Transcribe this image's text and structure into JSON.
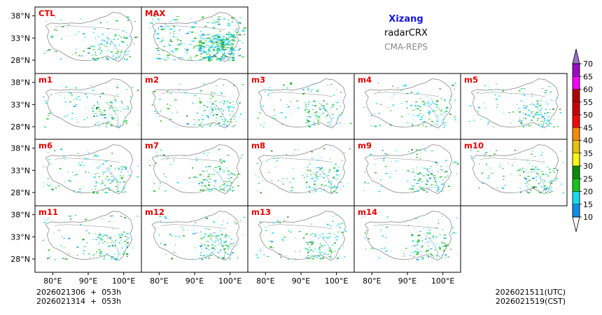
{
  "chart_data": {
    "type": "heatmap",
    "title": "Xizang",
    "variable": "radarCRX",
    "model": "CMA-REPS",
    "panels": [
      "CTL",
      "MAX",
      "m1",
      "m2",
      "m3",
      "m4",
      "m5",
      "m6",
      "m7",
      "m8",
      "m9",
      "m10",
      "m11",
      "m12",
      "m13",
      "m14"
    ],
    "x_ticks": [
      "80°E",
      "90°E",
      "100°E"
    ],
    "y_ticks": [
      "38°N",
      "33°N",
      "28°N"
    ],
    "xlim": [
      75,
      105
    ],
    "ylim": [
      25,
      40
    ],
    "colorbar": {
      "levels": [
        10,
        15,
        20,
        25,
        30,
        35,
        40,
        45,
        50,
        55,
        60,
        65,
        70
      ],
      "colors": [
        "#0e8fe6",
        "#19d9ee",
        "#18c418",
        "#0a8a0a",
        "#f7f711",
        "#e5c111",
        "#f98a09",
        "#f50808",
        "#cc0000",
        "#b10000",
        "#f700f7",
        "#9b08c6",
        "#9d6ed0"
      ],
      "extend": "both"
    },
    "init_time_utc": "2026021306  +  053h",
    "init_time_cst": "2026021314  +  053h",
    "valid_time_utc": "2026021511(UTC)",
    "valid_time_cst": "2026021519(CST)"
  }
}
